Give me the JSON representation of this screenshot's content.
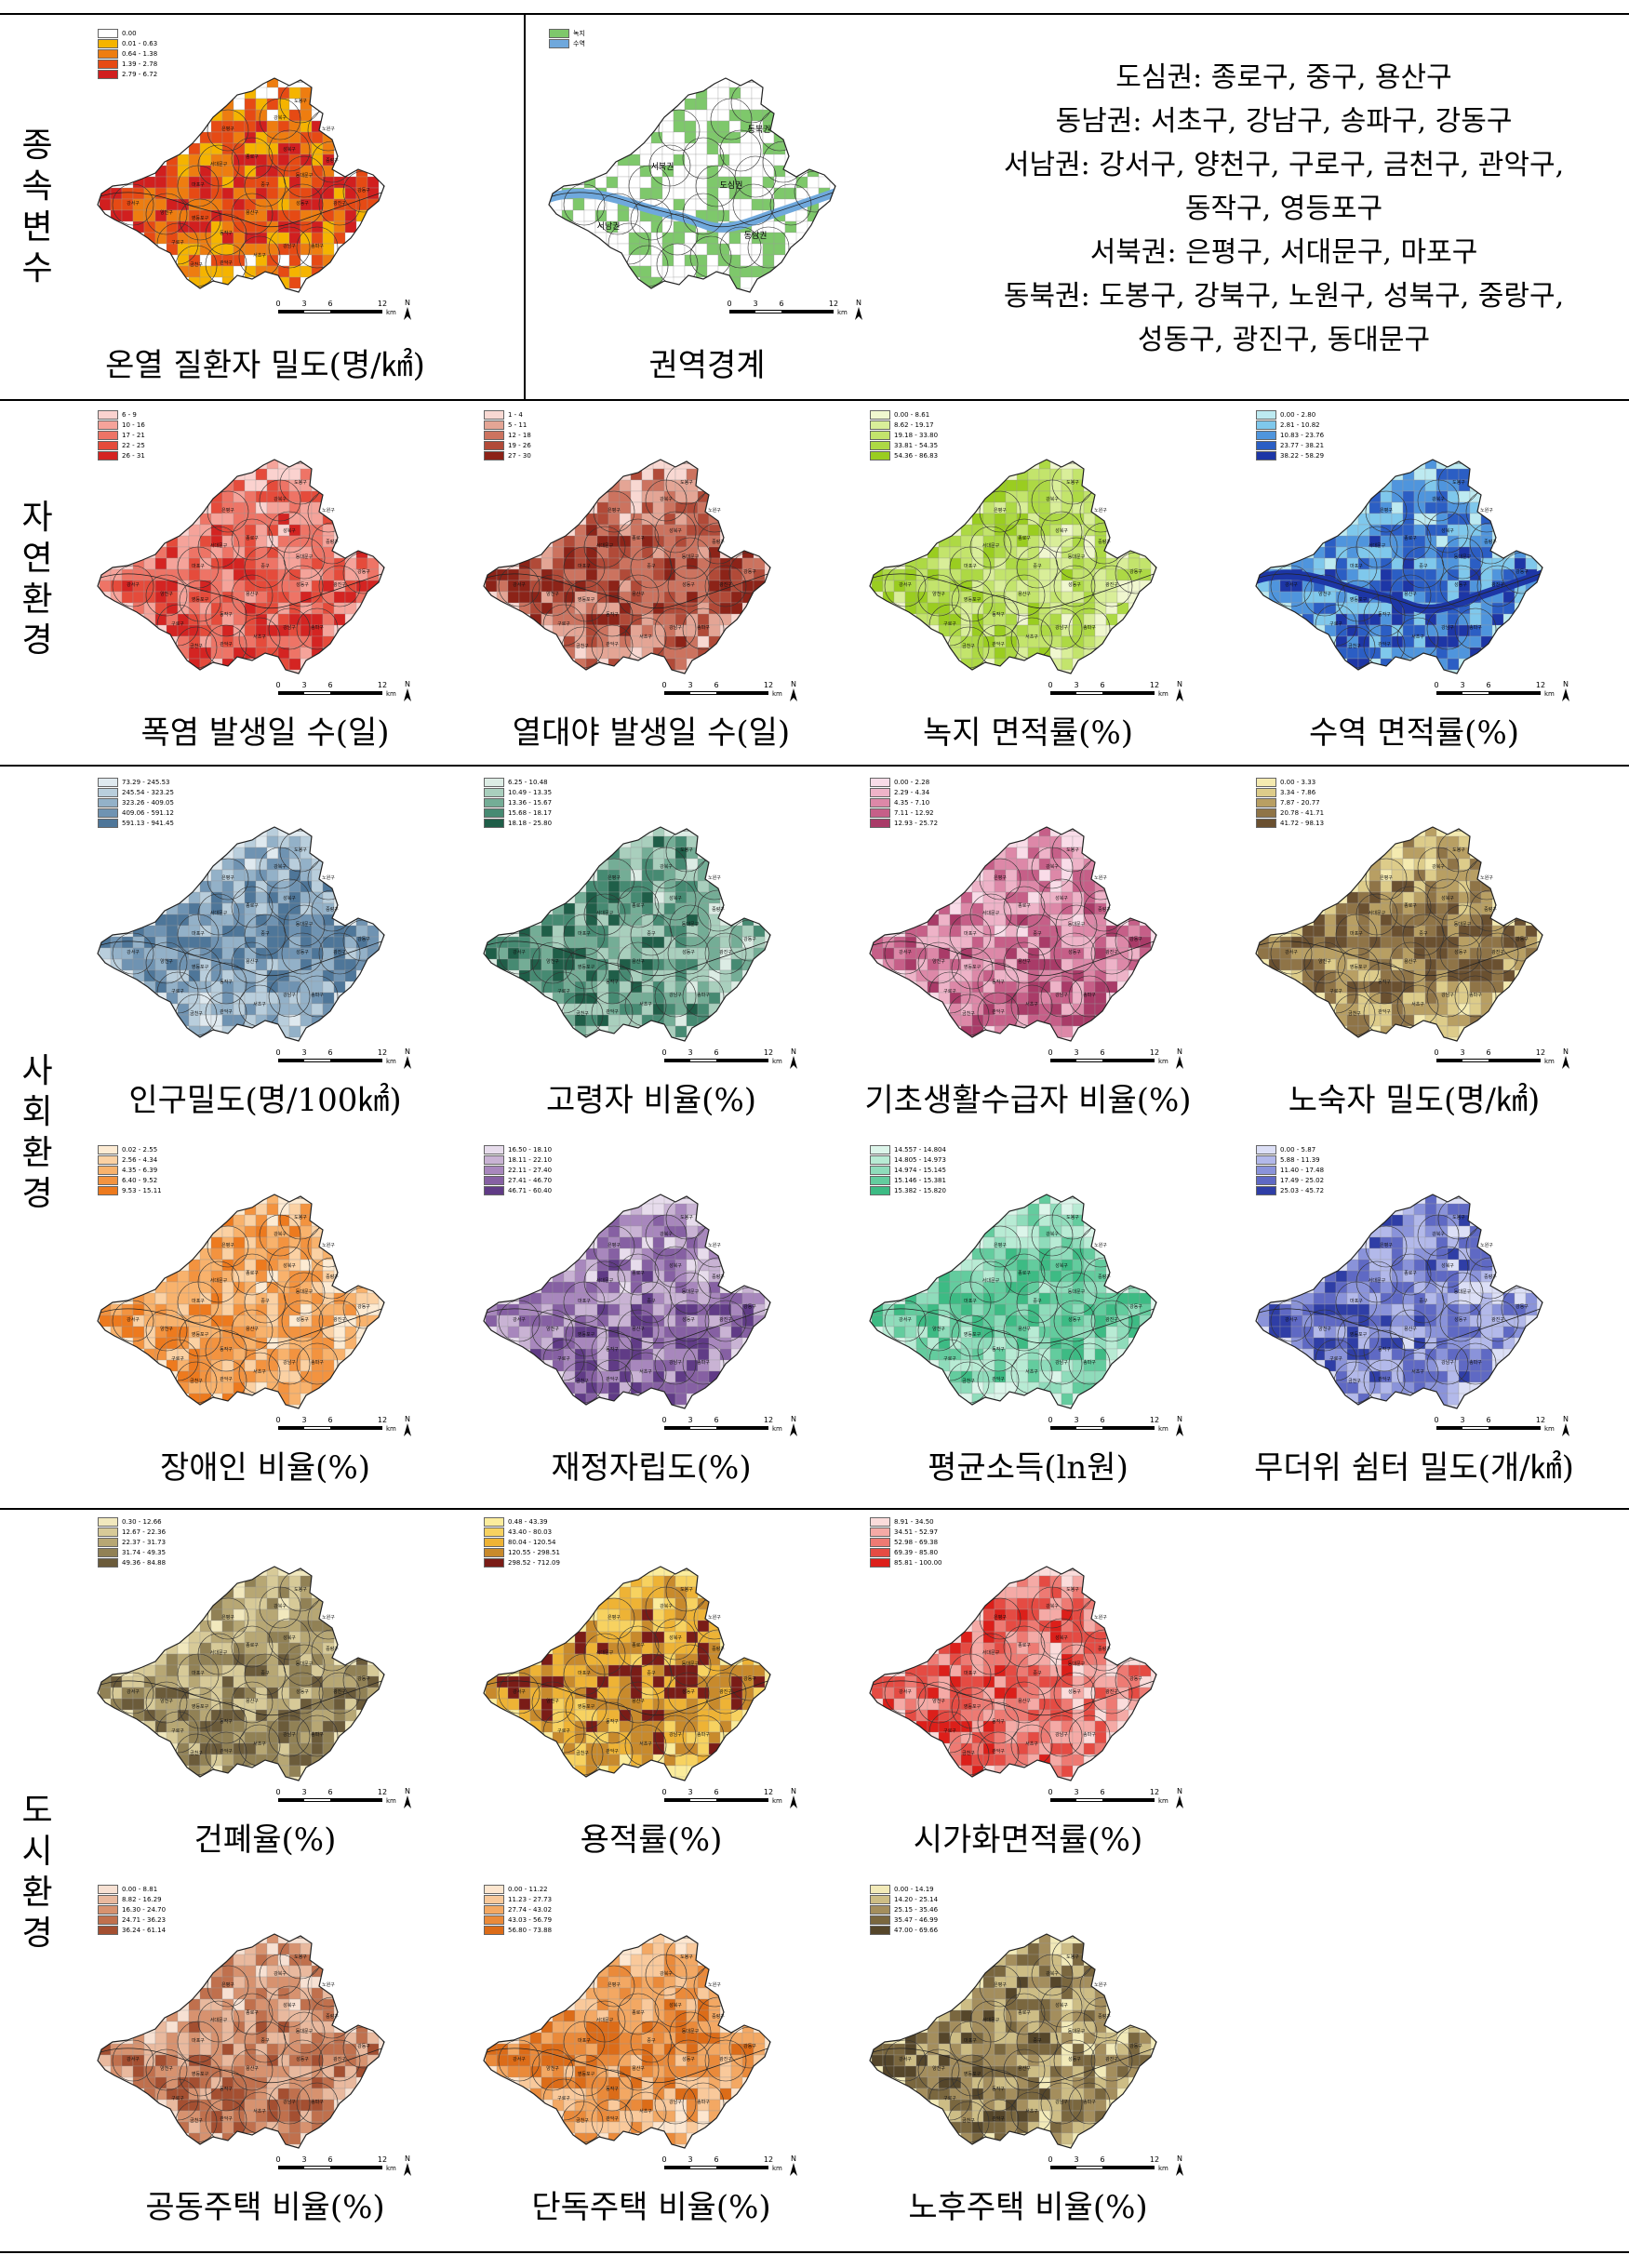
{
  "sections": [
    {
      "id": "dependent",
      "label": "종속변수"
    },
    {
      "id": "natural",
      "label": "자연환경"
    },
    {
      "id": "social",
      "label": "사회환경"
    },
    {
      "id": "urban",
      "label": "도시환경"
    }
  ],
  "scale_labels": [
    "0",
    "3",
    "6",
    "12"
  ],
  "scale_unit": "km",
  "north_label": "N",
  "region_info": [
    "도심권: 종로구, 중구, 용산구",
    "동남권: 서초구, 강남구, 송파구, 강동구",
    "서남권: 강서구, 양천구, 구로구, 금천구, 관악구,",
    "동작구, 영등포구",
    "서북권: 은평구, 서대문구, 마포구",
    "동북권: 도봉구, 강북구, 노원구, 성북구, 중랑구,",
    "성동구, 광진구, 동대문구"
  ],
  "panels": [
    {
      "id": "heat-patient-density",
      "caption": "온열 질환자 밀도(명/㎢)",
      "palette": [
        "#ffffff",
        "#f5b400",
        "#ee7d10",
        "#e64a14",
        "#d11f1f"
      ],
      "legend": [
        "0.00",
        "0.01 - 0.63",
        "0.64 - 1.38",
        "1.39 - 2.78",
        "2.79 - 6.72"
      ]
    },
    {
      "id": "region-boundary",
      "caption": "권역경계",
      "palette": [
        "#7ec86b",
        "#6fa8dc"
      ],
      "legend": [
        "녹지",
        "수역"
      ],
      "zone_labels": [
        "동북권",
        "서북권",
        "도심권",
        "서남권",
        "동남권"
      ]
    },
    {
      "id": "heatwave-days",
      "caption": "폭염 발생일 수(일)",
      "palette": [
        "#fbd2cf",
        "#f5a39a",
        "#ee7466",
        "#e54b3b",
        "#d42422"
      ],
      "legend": [
        "6 - 9",
        "10 - 16",
        "17 - 21",
        "22 - 25",
        "26 - 31"
      ]
    },
    {
      "id": "tropical-night-days",
      "caption": "열대야 발생일 수(일)",
      "palette": [
        "#f8d8d2",
        "#e4a595",
        "#cc735f",
        "#b14a38",
        "#8c2318"
      ],
      "legend": [
        "1 - 4",
        "5 - 11",
        "12 - 18",
        "19 - 26",
        "27 - 30"
      ]
    },
    {
      "id": "green-area-ratio",
      "caption": "녹지 면적률(%)",
      "palette": [
        "#f0f7cf",
        "#d9ee99",
        "#c3e46c",
        "#add944",
        "#9acd20"
      ],
      "legend": [
        "0.00 - 8.61",
        "8.62 - 19.17",
        "19.18 - 33.80",
        "33.81 - 54.35",
        "54.36 - 86.83"
      ]
    },
    {
      "id": "water-area-ratio",
      "caption": "수역 면적률(%)",
      "palette": [
        "#bdeaf1",
        "#7fc8ec",
        "#4f95dd",
        "#2b5ec4",
        "#1d36a6"
      ],
      "legend": [
        "0.00 - 2.80",
        "2.81 - 10.82",
        "10.83 - 23.76",
        "23.77 - 38.21",
        "38.22 - 58.29"
      ]
    },
    {
      "id": "population-density",
      "caption": "인구밀도(명/100㎢)",
      "palette": [
        "#dfe9ef",
        "#b9cedc",
        "#93b1c8",
        "#6f93b2",
        "#4e7699"
      ],
      "legend": [
        "73.29 - 245.53",
        "245.54 - 323.25",
        "323.26 - 409.05",
        "409.06 - 591.12",
        "591.13 - 941.45"
      ]
    },
    {
      "id": "elderly-ratio",
      "caption": "고령자 비율(%)",
      "palette": [
        "#dcece4",
        "#a9cfbd",
        "#74ad96",
        "#468a72",
        "#1f5e48"
      ],
      "legend": [
        "6.25 - 10.48",
        "10.49 - 13.35",
        "13.36 - 15.67",
        "15.68 - 18.17",
        "18.18 - 25.80"
      ]
    },
    {
      "id": "basic-livelihood-ratio",
      "caption": "기초생활수급자 비율(%)",
      "palette": [
        "#f9dce8",
        "#eeb3c8",
        "#dd88a8",
        "#c65f88",
        "#a93b68"
      ],
      "legend": [
        "0.00 - 2.28",
        "2.29 - 4.34",
        "4.35 - 7.10",
        "7.11 - 12.92",
        "12.93 - 25.72"
      ]
    },
    {
      "id": "homeless-density",
      "caption": "노숙자 밀도(명/㎢)",
      "palette": [
        "#f4eab0",
        "#ddcc8a",
        "#b89f63",
        "#8f7447",
        "#6a5030"
      ],
      "legend": [
        "0.00 - 3.33",
        "3.34 - 7.86",
        "7.87 - 20.77",
        "20.78 - 41.71",
        "41.72 - 98.13"
      ]
    },
    {
      "id": "disabled-ratio",
      "caption": "장애인 비율(%)",
      "palette": [
        "#fdebd3",
        "#fbd1a3",
        "#f8b26c",
        "#f3933f",
        "#ed7a1e"
      ],
      "legend": [
        "0.02 - 2.55",
        "2.56 - 4.34",
        "4.35 - 6.39",
        "6.40 - 9.52",
        "9.53 - 15.11"
      ]
    },
    {
      "id": "fiscal-independence",
      "caption": "재정자립도(%)",
      "palette": [
        "#e7dcec",
        "#c9b3d4",
        "#a887bd",
        "#8660a3",
        "#603b86"
      ],
      "legend": [
        "16.50 - 18.10",
        "18.11 - 22.10",
        "22.11 - 27.40",
        "27.41 - 46.70",
        "46.71 - 60.40"
      ]
    },
    {
      "id": "mean-income",
      "caption": "평균소득(ln원)",
      "palette": [
        "#dcf5ea",
        "#b8ebd4",
        "#8fdcbb",
        "#63cc9e",
        "#3dbb84"
      ],
      "legend": [
        "14.557 - 14.804",
        "14.805 - 14.973",
        "14.974 - 15.145",
        "15.146 - 15.381",
        "15.382 - 15.820"
      ]
    },
    {
      "id": "cooling-shelter-density",
      "caption": "무더위 쉼터 밀도(개/㎢)",
      "palette": [
        "#dcdff6",
        "#b3b9ea",
        "#8a93da",
        "#5f69c4",
        "#2f3ea6"
      ],
      "legend": [
        "0.00 - 5.87",
        "5.88 - 11.39",
        "11.40 - 17.48",
        "17.49 - 25.02",
        "25.03 - 45.72"
      ]
    },
    {
      "id": "building-coverage",
      "caption": "건폐율(%)",
      "palette": [
        "#f1e8bd",
        "#d7ca98",
        "#b7a774",
        "#918155",
        "#6b5b3a"
      ],
      "legend": [
        "0.30 - 12.66",
        "12.67 - 22.36",
        "22.37 - 31.73",
        "31.74 - 49.35",
        "49.36 - 84.88"
      ]
    },
    {
      "id": "floor-area-ratio",
      "caption": "용적률(%)",
      "palette": [
        "#fbec9c",
        "#f7d260",
        "#eeb335",
        "#c88a2c",
        "#7a1c17"
      ],
      "legend": [
        "0.48 - 43.39",
        "43.40 - 80.03",
        "80.04 - 120.54",
        "120.55 - 298.51",
        "298.52 - 712.09"
      ]
    },
    {
      "id": "urbanized-area-ratio",
      "caption": "시가화면적률(%)",
      "palette": [
        "#fbdcdb",
        "#f5aaa6",
        "#ee7a73",
        "#e54b43",
        "#dc1f1a"
      ],
      "legend": [
        "8.91 - 34.50",
        "34.51 - 52.97",
        "52.98 - 69.38",
        "69.39 - 85.80",
        "85.81 - 100.00"
      ]
    },
    {
      "id": "apartment-ratio",
      "caption": "공동주택 비율(%)",
      "palette": [
        "#f7e1d3",
        "#e9b99e",
        "#d7926f",
        "#c0704d",
        "#a44f31"
      ],
      "legend": [
        "0.00 - 8.81",
        "8.82 - 16.29",
        "16.30 - 24.70",
        "24.71 - 36.23",
        "36.24 - 61.14"
      ]
    },
    {
      "id": "detached-house-ratio",
      "caption": "단독주택 비율(%)",
      "palette": [
        "#fde6cf",
        "#f9c99b",
        "#f3a863",
        "#ea8a3a",
        "#dc6c18"
      ],
      "legend": [
        "0.00 - 11.22",
        "11.23 - 27.73",
        "27.74 - 43.02",
        "43.03 - 56.79",
        "56.80 - 73.88"
      ]
    },
    {
      "id": "old-housing-ratio",
      "caption": "노후주택 비율(%)",
      "palette": [
        "#f2eab8",
        "#cdbd85",
        "#a48e5d",
        "#7a673f",
        "#55462a"
      ],
      "legend": [
        "0.00 - 14.19",
        "14.20 - 25.14",
        "25.15 - 35.46",
        "35.47 - 46.99",
        "47.00 - 69.66"
      ]
    }
  ],
  "district_labels": [
    "도봉구",
    "노원구",
    "강북구",
    "은평구",
    "성북구",
    "중랑구",
    "종로구",
    "서대문구",
    "동대문구",
    "마포구",
    "중구",
    "성동구",
    "광진구",
    "강동구",
    "용산구",
    "강서구",
    "양천구",
    "영등포구",
    "동작구",
    "송파구",
    "강남구",
    "서초구",
    "구로구",
    "금천구",
    "관악구"
  ]
}
